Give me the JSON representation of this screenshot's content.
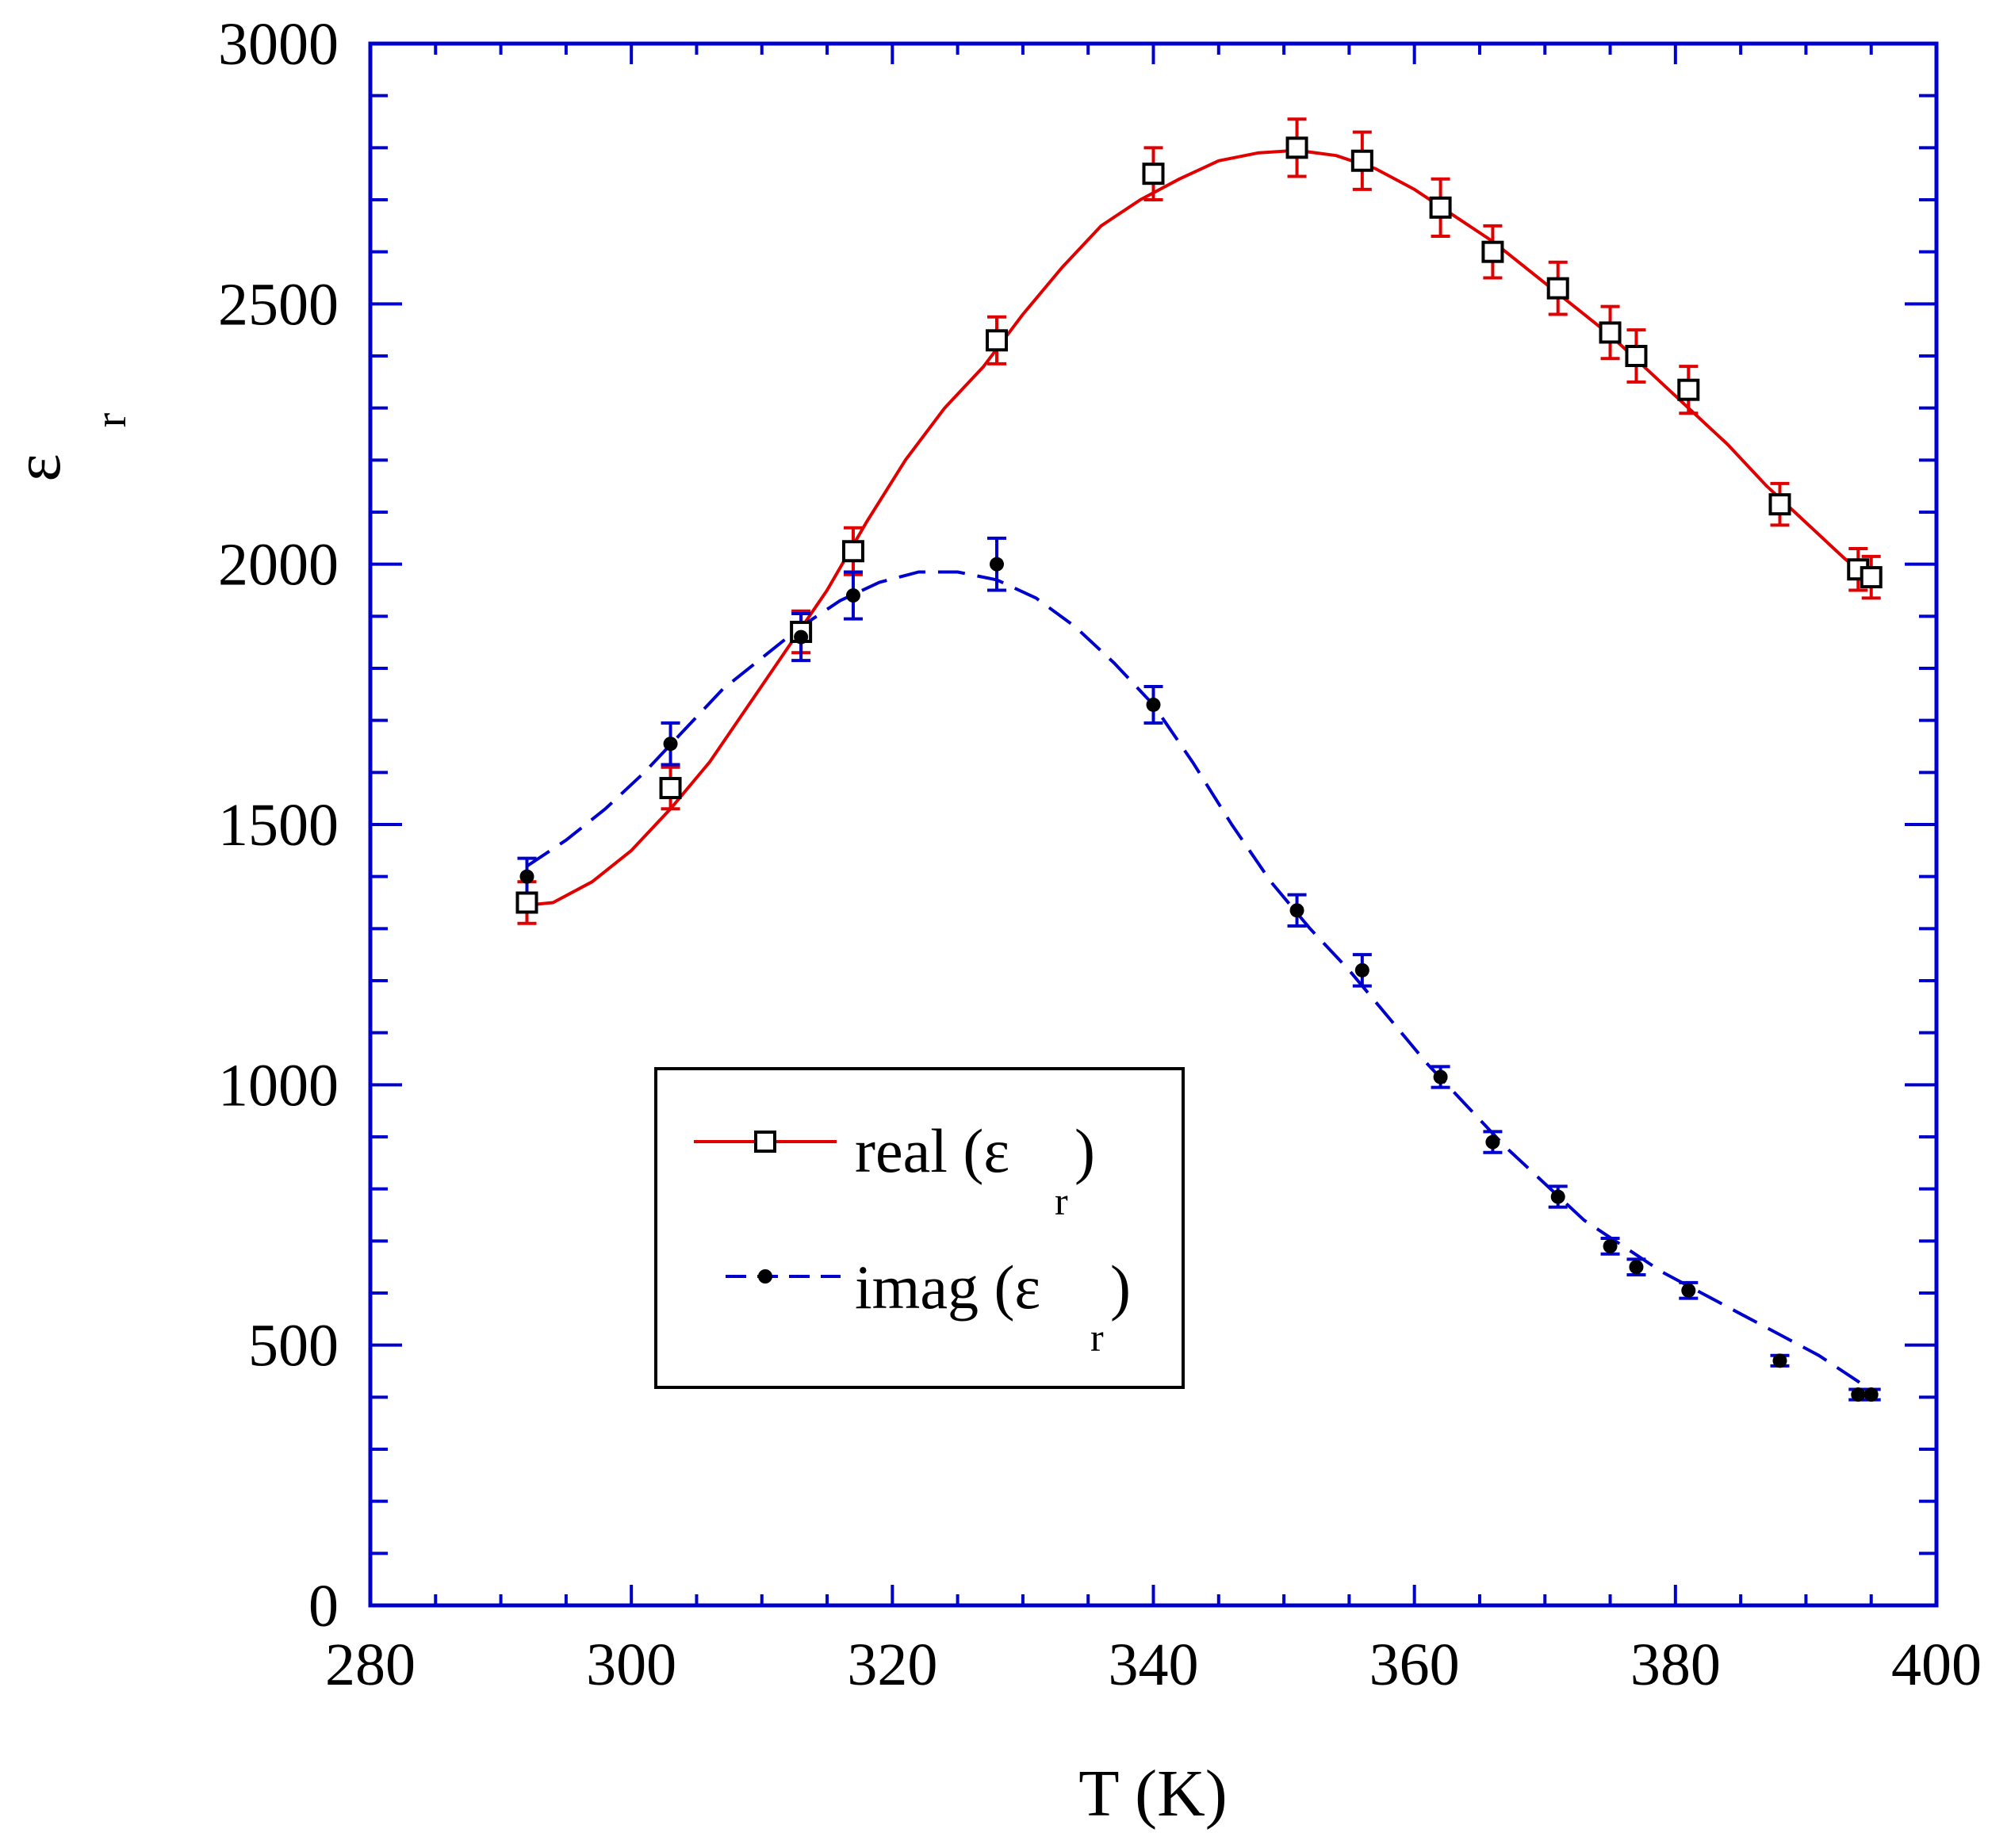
{
  "chart_data": {
    "type": "line",
    "title": "",
    "xlabel": "T (K)",
    "ylabel": "ε",
    "ylabel_subscript": "r",
    "xlim": [
      280,
      400
    ],
    "ylim": [
      0,
      3000
    ],
    "x_ticks": [
      280,
      300,
      320,
      340,
      360,
      380,
      400
    ],
    "y_ticks": [
      0,
      500,
      1000,
      1500,
      2000,
      2500,
      3000
    ],
    "grid": false,
    "legend_position": "lower-left",
    "series": [
      {
        "name": "real (ε",
        "name_subscript": "r",
        "name_suffix": " )",
        "color": "#e00000",
        "marker": "open-square",
        "line_style": "solid",
        "x": [
          292,
          303,
          313,
          317,
          328,
          340,
          351,
          356,
          362,
          366,
          371,
          375,
          377,
          381,
          388,
          394,
          395
        ],
        "y": [
          1350,
          1570,
          1870,
          2025,
          2430,
          2750,
          2800,
          2775,
          2685,
          2600,
          2530,
          2445,
          2400,
          2335,
          2115,
          1990,
          1975
        ],
        "err": [
          40,
          40,
          40,
          45,
          45,
          50,
          55,
          55,
          55,
          50,
          50,
          50,
          50,
          45,
          40,
          40,
          40
        ],
        "curve_x": [
          292,
          294,
          297,
          300,
          303,
          306,
          309,
          312,
          315,
          318,
          321,
          324,
          327,
          330,
          333,
          336,
          339,
          342,
          345,
          348,
          351,
          354,
          357,
          360,
          363,
          366,
          369,
          372,
          375,
          378,
          381,
          384,
          387,
          390,
          393,
          395
        ],
        "curve_y": [
          1345,
          1350,
          1390,
          1450,
          1530,
          1620,
          1730,
          1840,
          1950,
          2080,
          2200,
          2300,
          2380,
          2480,
          2570,
          2650,
          2700,
          2740,
          2775,
          2790,
          2795,
          2785,
          2760,
          2720,
          2670,
          2620,
          2560,
          2500,
          2440,
          2370,
          2300,
          2230,
          2150,
          2080,
          2010,
          1970
        ]
      },
      {
        "name": "imag (ε",
        "name_subscript": "r",
        "name_suffix": " )",
        "color": "#0000cc",
        "marker": "filled-dot",
        "line_style": "dashed",
        "x": [
          292,
          303,
          313,
          317,
          328,
          340,
          351,
          356,
          362,
          366,
          371,
          375,
          377,
          381,
          388,
          394,
          395
        ],
        "y": [
          1400,
          1655,
          1860,
          1940,
          2000,
          1730,
          1335,
          1220,
          1015,
          890,
          785,
          690,
          650,
          605,
          470,
          405,
          405
        ],
        "err": [
          35,
          40,
          45,
          45,
          50,
          35,
          30,
          30,
          20,
          20,
          20,
          15,
          15,
          15,
          10,
          10,
          10
        ],
        "curve_x": [
          292,
          295,
          298,
          301,
          304,
          307,
          310,
          313,
          316,
          319,
          322,
          325,
          328,
          331,
          334,
          337,
          340,
          343,
          346,
          349,
          352,
          355,
          358,
          361,
          364,
          367,
          370,
          373,
          376,
          379,
          382,
          385,
          388,
          391,
          394,
          395
        ],
        "curve_y": [
          1420,
          1470,
          1530,
          1600,
          1680,
          1760,
          1820,
          1880,
          1930,
          1965,
          1985,
          1985,
          1970,
          1935,
          1880,
          1810,
          1730,
          1620,
          1500,
          1390,
          1300,
          1220,
          1130,
          1040,
          960,
          880,
          810,
          740,
          690,
          640,
          600,
          560,
          520,
          480,
          430,
          410
        ]
      }
    ]
  }
}
